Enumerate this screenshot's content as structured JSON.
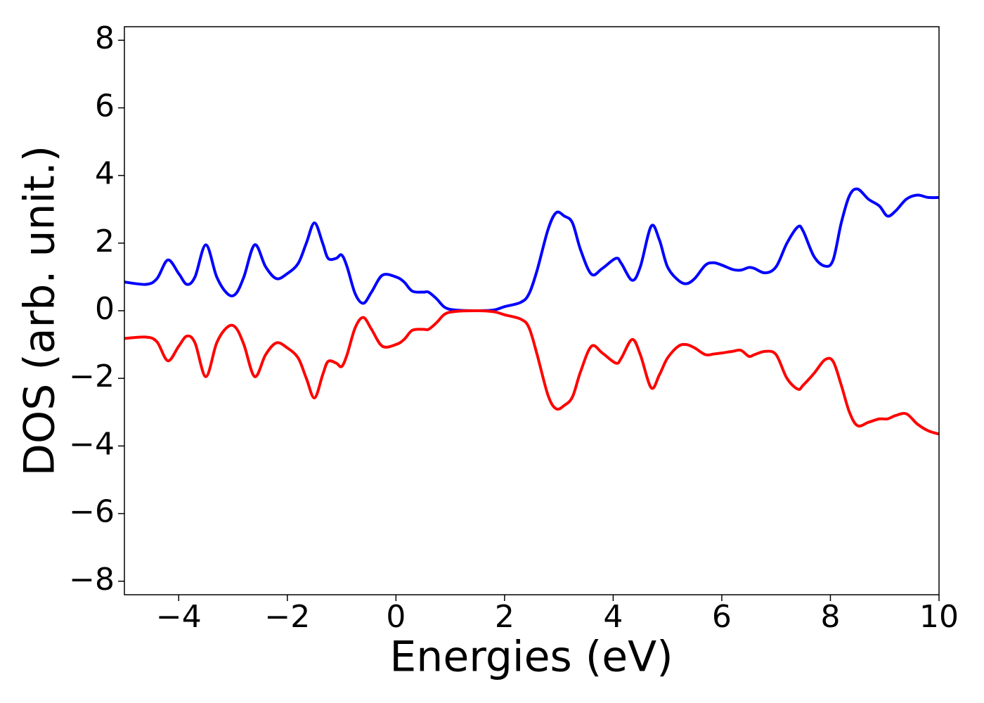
{
  "chart_data": {
    "type": "line",
    "xlabel": "Energies (eV)",
    "ylabel": "DOS (arb. unit.)",
    "x": [
      -5,
      -4.6,
      -4.4,
      -4.2,
      -4.0,
      -3.85,
      -3.7,
      -3.5,
      -3.3,
      -3.1,
      -2.95,
      -2.8,
      -2.6,
      -2.4,
      -2.2,
      -2.0,
      -1.8,
      -1.65,
      -1.5,
      -1.35,
      -1.25,
      -1.1,
      -1.0,
      -0.9,
      -0.75,
      -0.6,
      -0.45,
      -0.25,
      0,
      0.15,
      0.3,
      0.5,
      0.6,
      0.75,
      0.9,
      1.1,
      1.5,
      1.8,
      2.0,
      2.3,
      2.45,
      2.6,
      2.8,
      2.95,
      3.1,
      3.25,
      3.4,
      3.6,
      3.8,
      4.05,
      4.15,
      4.35,
      4.5,
      4.7,
      4.85,
      5.0,
      5.2,
      5.35,
      5.5,
      5.7,
      5.85,
      6.0,
      6.2,
      6.35,
      6.5,
      6.6,
      6.8,
      7.0,
      7.2,
      7.4,
      7.5,
      7.7,
      7.9,
      8.05,
      8.2,
      8.35,
      8.5,
      8.7,
      8.9,
      9.05,
      9.2,
      9.4,
      9.6,
      9.8,
      10.0
    ],
    "series": [
      {
        "color": "#0000ff",
        "values": [
          0.85,
          0.78,
          0.95,
          1.5,
          1.1,
          0.78,
          1.0,
          1.95,
          1.0,
          0.5,
          0.5,
          1.0,
          1.95,
          1.3,
          0.95,
          1.1,
          1.4,
          2.0,
          2.6,
          2.0,
          1.55,
          1.55,
          1.65,
          1.3,
          0.5,
          0.22,
          0.55,
          1.05,
          1.0,
          0.85,
          0.58,
          0.55,
          0.55,
          0.35,
          0.1,
          0.02,
          0.0,
          0.02,
          0.12,
          0.25,
          0.5,
          1.2,
          2.4,
          2.9,
          2.8,
          2.6,
          1.8,
          1.08,
          1.25,
          1.55,
          1.4,
          0.9,
          1.3,
          2.5,
          2.1,
          1.3,
          0.9,
          0.8,
          0.95,
          1.35,
          1.42,
          1.35,
          1.22,
          1.2,
          1.28,
          1.25,
          1.12,
          1.3,
          2.0,
          2.48,
          2.35,
          1.6,
          1.32,
          1.5,
          2.6,
          3.4,
          3.6,
          3.3,
          3.1,
          2.8,
          2.95,
          3.3,
          3.42,
          3.35,
          3.35
        ]
      },
      {
        "color": "#ff0000",
        "values": [
          -0.82,
          -0.78,
          -0.92,
          -1.48,
          -1.05,
          -0.75,
          -0.95,
          -1.95,
          -0.95,
          -0.48,
          -0.5,
          -1.0,
          -1.95,
          -1.3,
          -0.95,
          -1.1,
          -1.4,
          -2.0,
          -2.58,
          -1.9,
          -1.5,
          -1.55,
          -1.65,
          -1.3,
          -0.5,
          -0.2,
          -0.55,
          -1.05,
          -1.0,
          -0.85,
          -0.58,
          -0.55,
          -0.55,
          -0.35,
          -0.1,
          -0.02,
          0.0,
          -0.03,
          -0.12,
          -0.25,
          -0.5,
          -1.3,
          -2.5,
          -2.9,
          -2.8,
          -2.55,
          -1.8,
          -1.05,
          -1.25,
          -1.55,
          -1.4,
          -0.85,
          -1.3,
          -2.28,
          -1.9,
          -1.4,
          -1.05,
          -1.0,
          -1.1,
          -1.3,
          -1.28,
          -1.25,
          -1.2,
          -1.17,
          -1.35,
          -1.3,
          -1.2,
          -1.3,
          -2.0,
          -2.32,
          -2.2,
          -1.85,
          -1.45,
          -1.5,
          -2.2,
          -3.0,
          -3.4,
          -3.3,
          -3.2,
          -3.2,
          -3.1,
          -3.05,
          -3.35,
          -3.55,
          -3.65
        ]
      }
    ],
    "xlim": [
      -5,
      10
    ],
    "xticks": [
      {
        "value": -4,
        "label": "−4"
      },
      {
        "value": -2,
        "label": "−2"
      },
      0,
      2,
      4,
      6,
      8,
      10
    ],
    "ylim": [
      -8.4,
      8.4
    ],
    "yticks": [
      {
        "value": -8,
        "label": "−8"
      },
      {
        "value": -6,
        "label": "−6"
      },
      {
        "value": -4,
        "label": "−4"
      },
      {
        "value": -2,
        "label": "−2"
      },
      0,
      2,
      4,
      6,
      8
    ],
    "grid": false
  }
}
